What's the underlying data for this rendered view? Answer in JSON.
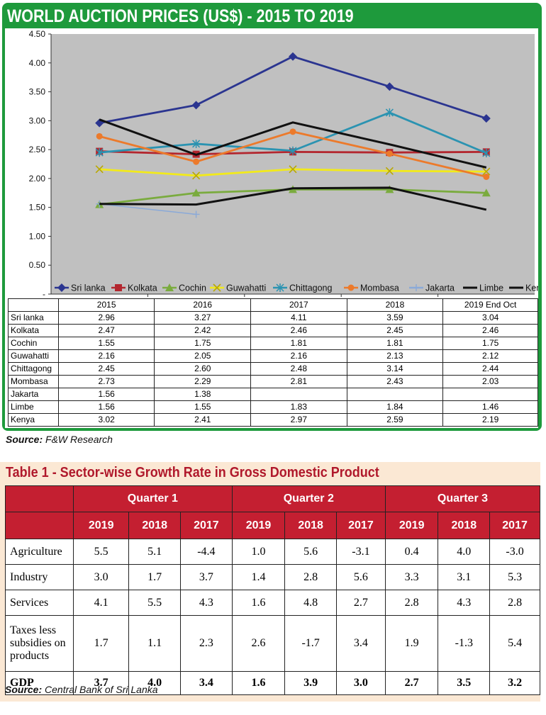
{
  "chart_data": {
    "type": "line",
    "title": "WORLD AUCTION PRICES (US$) - 2015 TO 2019",
    "categories": [
      "2015",
      "2016",
      "2017",
      "2018",
      "2019 End Oct"
    ],
    "y_ticks": [
      "4.50",
      "4.00",
      "3.50",
      "3.00",
      "2.50",
      "2.00",
      "1.50",
      "1.00",
      "0.50",
      "-"
    ],
    "ylim": [
      0,
      4.5
    ],
    "grid": false,
    "legend_position": "bottom",
    "series": [
      {
        "name": "Sri lanka",
        "values": [
          "2.96",
          "3.27",
          "4.11",
          "3.59",
          "3.04"
        ],
        "color": "#2b3590",
        "marker": "diamond"
      },
      {
        "name": "Kolkata",
        "values": [
          "2.47",
          "2.42",
          "2.46",
          "2.45",
          "2.46"
        ],
        "color": "#b3262e",
        "marker": "square"
      },
      {
        "name": "Cochin",
        "values": [
          "1.55",
          "1.75",
          "1.81",
          "1.81",
          "1.75"
        ],
        "color": "#7aab3e",
        "marker": "triangle"
      },
      {
        "name": "Guwahatti",
        "values": [
          "2.16",
          "2.05",
          "2.16",
          "2.13",
          "2.12"
        ],
        "color": "#f2ea1a",
        "marker": "x"
      },
      {
        "name": "Chittagong",
        "values": [
          "2.45",
          "2.60",
          "2.48",
          "3.14",
          "2.44"
        ],
        "color": "#2b93b1",
        "marker": "star"
      },
      {
        "name": "Mombasa",
        "values": [
          "2.73",
          "2.29",
          "2.81",
          "2.43",
          "2.03"
        ],
        "color": "#ec7a2b",
        "marker": "circle"
      },
      {
        "name": "Jakarta",
        "values": [
          "1.56",
          "1.38",
          "",
          "",
          ""
        ],
        "color": "#8aa9d8",
        "marker": "plus"
      },
      {
        "name": "Limbe",
        "values": [
          "1.56",
          "1.55",
          "1.83",
          "1.84",
          "1.46"
        ],
        "color": "#111111",
        "marker": "none"
      },
      {
        "name": "Kenya",
        "values": [
          "3.02",
          "2.41",
          "2.97",
          "2.59",
          "2.19"
        ],
        "color": "#111111",
        "marker": "none"
      }
    ]
  },
  "chart_source": {
    "label": "Source:",
    "text": " F&W Research"
  },
  "gdp_table": {
    "title": "Table 1 - Sector-wise Growth Rate in Gross Domestic Product",
    "quarters": [
      "Quarter 1",
      "Quarter 2",
      "Quarter 3"
    ],
    "years": [
      "2019",
      "2018",
      "2017",
      "2019",
      "2018",
      "2017",
      "2019",
      "2018",
      "2017"
    ],
    "rows": [
      {
        "label": "Agriculture",
        "values": [
          "5.5",
          "5.1",
          "-4.4",
          "1.0",
          "5.6",
          "-3.1",
          "0.4",
          "4.0",
          "-3.0"
        ]
      },
      {
        "label": "Industry",
        "values": [
          "3.0",
          "1.7",
          "3.7",
          "1.4",
          "2.8",
          "5.6",
          "3.3",
          "3.1",
          "5.3"
        ]
      },
      {
        "label": "Services",
        "values": [
          "4.1",
          "5.5",
          "4.3",
          "1.6",
          "4.8",
          "2.7",
          "2.8",
          "4.3",
          "2.8"
        ]
      },
      {
        "label": "Taxes less subsidies on products",
        "values": [
          "1.7",
          "1.1",
          "2.3",
          "2.6",
          "-1.7",
          "3.4",
          "1.9",
          "-1.3",
          "5.4"
        ]
      },
      {
        "label": "GDP",
        "values": [
          "3.7",
          "4.0",
          "3.4",
          "1.6",
          "3.9",
          "3.0",
          "2.7",
          "3.5",
          "3.2"
        ]
      }
    ],
    "source_label": "Source:",
    "source_text": " Central Bank of Sri Lanka"
  }
}
